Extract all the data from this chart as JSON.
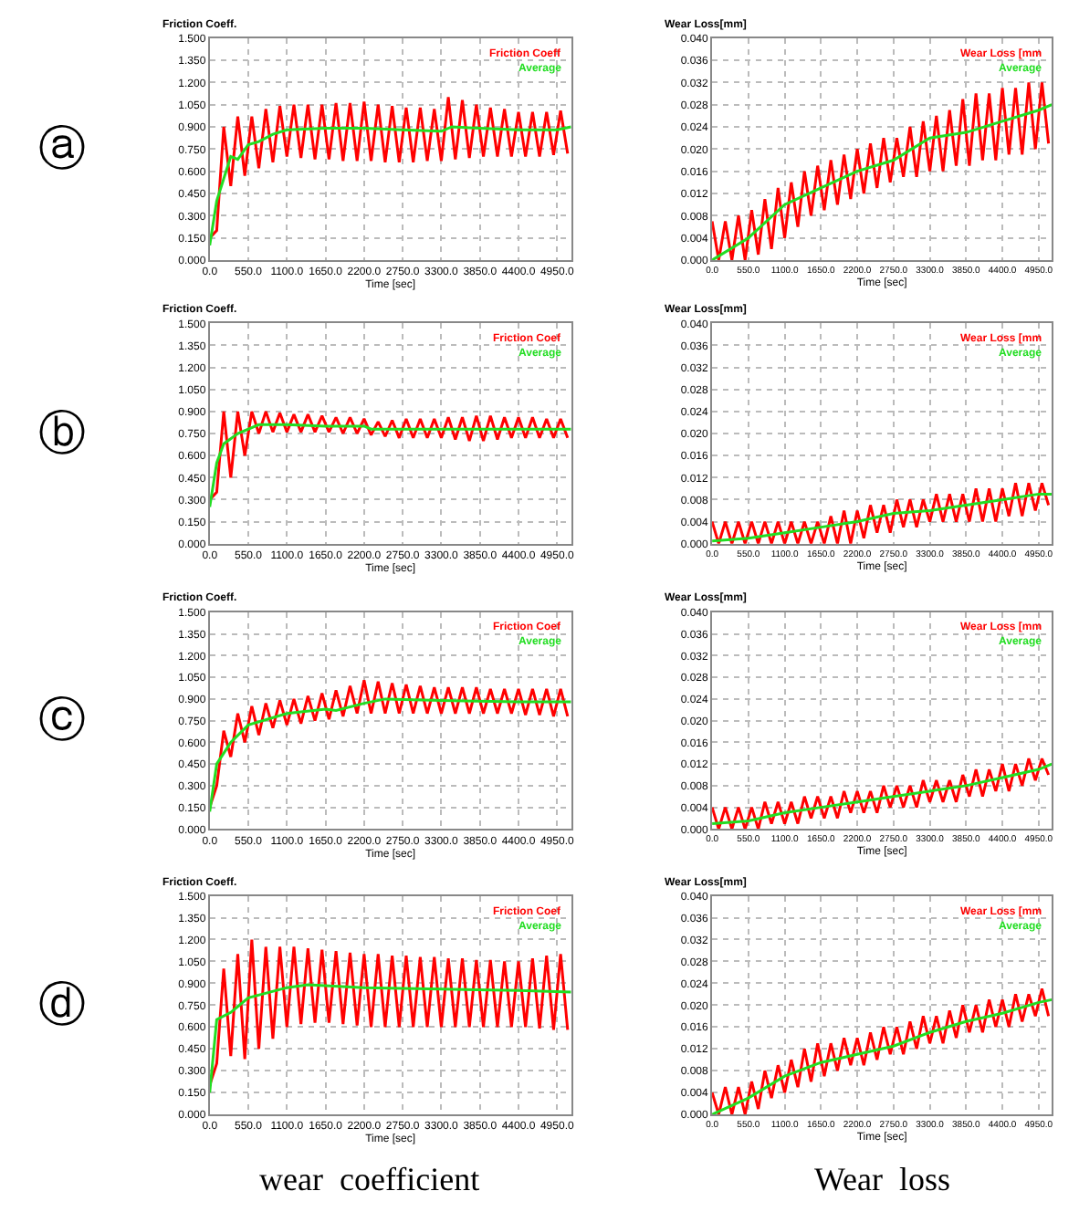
{
  "chart_data": [
    {
      "type": "line",
      "ylabel": "Friction Coeff.",
      "xlabel": "Time [sec]",
      "annotations": [
        "ⓐ"
      ],
      "legend": "top right",
      "grid": true,
      "line_style": "solid",
      "marker": "none",
      "xlim": [
        0,
        5150
      ],
      "xticks": [
        {
          "value": 0,
          "label": "0.0"
        },
        {
          "value": 550,
          "label": "550.0"
        },
        {
          "value": 1100,
          "label": "1100.0"
        },
        {
          "value": 1650,
          "label": "1650.0"
        },
        {
          "value": 2200,
          "label": "2200.0"
        },
        {
          "value": 2750,
          "label": "2750.0"
        },
        {
          "value": 3300,
          "label": "3300.0"
        },
        {
          "value": 3850,
          "label": "3850.0"
        },
        {
          "value": 4400,
          "label": "4400.0"
        },
        {
          "value": 4950,
          "label": "4950.0"
        }
      ],
      "ylim": [
        0,
        1.5
      ],
      "yticks": [
        {
          "value": 0,
          "label": "0.000"
        },
        {
          "value": 0.15,
          "label": "0.150"
        },
        {
          "value": 0.3,
          "label": "0.300"
        },
        {
          "value": 0.45,
          "label": "0.450"
        },
        {
          "value": 0.6,
          "label": "0.600"
        },
        {
          "value": 0.75,
          "label": "0.750"
        },
        {
          "value": 0.9,
          "label": "0.900"
        },
        {
          "value": 1.05,
          "label": "1.050"
        },
        {
          "value": 1.2,
          "label": "1.200"
        },
        {
          "value": 1.35,
          "label": "1.350"
        },
        {
          "value": 1.5,
          "label": "1.500"
        }
      ],
      "series": [
        {
          "name": "Friction Coeff",
          "color": "#ff0000",
          "x": [
            0,
            100,
            200,
            300,
            400,
            500,
            600,
            700,
            800,
            900,
            1000,
            1100,
            1200,
            1300,
            1400,
            1500,
            1600,
            1700,
            1800,
            1900,
            2000,
            2100,
            2200,
            2300,
            2400,
            2500,
            2600,
            2700,
            2800,
            2900,
            3000,
            3100,
            3200,
            3300,
            3400,
            3500,
            3600,
            3700,
            3800,
            3900,
            4000,
            4100,
            4200,
            4300,
            4400,
            4500,
            4600,
            4700,
            4800,
            4900,
            5000,
            5100
          ],
          "values": [
            0.15,
            0.2,
            0.9,
            0.5,
            0.97,
            0.57,
            0.97,
            0.62,
            1.02,
            0.66,
            1.04,
            0.7,
            1.05,
            0.69,
            1.05,
            0.68,
            1.05,
            0.68,
            1.06,
            0.67,
            1.06,
            0.67,
            1.07,
            0.67,
            1.05,
            0.66,
            1.04,
            0.66,
            1.03,
            0.66,
            1.03,
            0.67,
            1.02,
            0.67,
            1.1,
            0.68,
            1.08,
            0.69,
            1.05,
            0.7,
            1.03,
            0.7,
            1.02,
            0.7,
            1.0,
            0.7,
            1.0,
            0.7,
            1.0,
            0.71,
            1.01,
            0.72
          ]
        },
        {
          "name": "Average",
          "color": "#22dd22",
          "x": [
            0,
            100,
            200,
            300,
            400,
            550,
            700,
            900,
            1100,
            1650,
            2200,
            2750,
            3300,
            3450,
            3850,
            4400,
            4950,
            5150
          ],
          "values": [
            0.1,
            0.4,
            0.55,
            0.7,
            0.68,
            0.78,
            0.8,
            0.85,
            0.88,
            0.89,
            0.89,
            0.88,
            0.87,
            0.9,
            0.89,
            0.88,
            0.88,
            0.9
          ]
        }
      ]
    },
    {
      "type": "line",
      "ylabel": "Wear Loss[mm]",
      "xlabel": "Time [sec]",
      "legend": "top right",
      "grid": true,
      "line_style": "solid",
      "marker": "none",
      "xlim": [
        0,
        5150
      ],
      "xticks": [
        {
          "value": 0,
          "label": "0.0"
        },
        {
          "value": 550,
          "label": "550.0"
        },
        {
          "value": 1100,
          "label": "1100.0"
        },
        {
          "value": 1650,
          "label": "1650.0"
        },
        {
          "value": 2200,
          "label": "2200.0"
        },
        {
          "value": 2750,
          "label": "2750.0"
        },
        {
          "value": 3300,
          "label": "3300.0"
        },
        {
          "value": 3850,
          "label": "3850.0"
        },
        {
          "value": 4400,
          "label": "4400.0"
        },
        {
          "value": 4950,
          "label": "4950.0"
        }
      ],
      "ylim": [
        0,
        0.04
      ],
      "yticks": [
        {
          "value": 0,
          "label": "0.000"
        },
        {
          "value": 0.004,
          "label": "0.004"
        },
        {
          "value": 0.008,
          "label": "0.008"
        },
        {
          "value": 0.012,
          "label": "0.012"
        },
        {
          "value": 0.016,
          "label": "0.016"
        },
        {
          "value": 0.02,
          "label": "0.020"
        },
        {
          "value": 0.024,
          "label": "0.024"
        },
        {
          "value": 0.028,
          "label": "0.028"
        },
        {
          "value": 0.032,
          "label": "0.032"
        },
        {
          "value": 0.036,
          "label": "0.036"
        },
        {
          "value": 0.04,
          "label": "0.040"
        }
      ],
      "series": [
        {
          "name": "Wear Loss [mm",
          "color": "#ff0000",
          "x": [
            0,
            100,
            200,
            300,
            400,
            500,
            600,
            700,
            800,
            900,
            1000,
            1100,
            1200,
            1300,
            1400,
            1500,
            1600,
            1700,
            1800,
            1900,
            2000,
            2100,
            2200,
            2300,
            2400,
            2500,
            2600,
            2700,
            2800,
            2900,
            3000,
            3100,
            3200,
            3300,
            3400,
            3500,
            3600,
            3700,
            3800,
            3900,
            4000,
            4100,
            4200,
            4300,
            4400,
            4500,
            4600,
            4700,
            4800,
            4900,
            5000,
            5100
          ],
          "values": [
            0.007,
            0,
            0.007,
            0,
            0.008,
            0,
            0.009,
            0.001,
            0.011,
            0.002,
            0.013,
            0.004,
            0.014,
            0.006,
            0.016,
            0.008,
            0.017,
            0.009,
            0.018,
            0.01,
            0.019,
            0.011,
            0.02,
            0.012,
            0.021,
            0.013,
            0.022,
            0.014,
            0.022,
            0.015,
            0.024,
            0.015,
            0.025,
            0.016,
            0.026,
            0.016,
            0.027,
            0.017,
            0.029,
            0.017,
            0.03,
            0.018,
            0.03,
            0.018,
            0.031,
            0.019,
            0.031,
            0.019,
            0.032,
            0.02,
            0.032,
            0.021
          ]
        },
        {
          "name": "Average",
          "color": "#22dd22",
          "x": [
            0,
            550,
            1100,
            1650,
            2200,
            2750,
            3300,
            3850,
            4400,
            4950,
            5150
          ],
          "values": [
            0,
            0.004,
            0.01,
            0.013,
            0.016,
            0.018,
            0.022,
            0.023,
            0.025,
            0.027,
            0.028
          ]
        }
      ]
    },
    {
      "type": "line",
      "ylabel": "Friction Coeff.",
      "xlabel": "Time [sec]",
      "annotations": [
        "ⓑ"
      ],
      "legend": "top right",
      "grid": true,
      "line_style": "solid",
      "marker": "none",
      "xlim": [
        0,
        5150
      ],
      "xticks": [
        {
          "value": 0,
          "label": "0.0"
        },
        {
          "value": 550,
          "label": "550.0"
        },
        {
          "value": 1100,
          "label": "1100.0"
        },
        {
          "value": 1650,
          "label": "1650.0"
        },
        {
          "value": 2200,
          "label": "2200.0"
        },
        {
          "value": 2750,
          "label": "2750.0"
        },
        {
          "value": 3300,
          "label": "3300.0"
        },
        {
          "value": 3850,
          "label": "3850.0"
        },
        {
          "value": 4400,
          "label": "4400.0"
        },
        {
          "value": 4950,
          "label": "4950.0"
        }
      ],
      "ylim": [
        0,
        1.5
      ],
      "yticks": [
        {
          "value": 0,
          "label": "0.000"
        },
        {
          "value": 0.15,
          "label": "0.150"
        },
        {
          "value": 0.3,
          "label": "0.300"
        },
        {
          "value": 0.45,
          "label": "0.450"
        },
        {
          "value": 0.6,
          "label": "0.600"
        },
        {
          "value": 0.75,
          "label": "0.750"
        },
        {
          "value": 0.9,
          "label": "0.900"
        },
        {
          "value": 1.05,
          "label": "1.050"
        },
        {
          "value": 1.2,
          "label": "1.200"
        },
        {
          "value": 1.35,
          "label": "1.350"
        },
        {
          "value": 1.5,
          "label": "1.500"
        }
      ],
      "series": [
        {
          "name": "Friction Coef",
          "color": "#ff0000",
          "x": [
            0,
            100,
            200,
            300,
            400,
            500,
            600,
            700,
            800,
            900,
            1000,
            1100,
            1200,
            1300,
            1400,
            1500,
            1600,
            1700,
            1800,
            1900,
            2000,
            2100,
            2200,
            2300,
            2400,
            2500,
            2600,
            2700,
            2800,
            2900,
            3000,
            3100,
            3200,
            3300,
            3400,
            3500,
            3600,
            3700,
            3800,
            3900,
            4000,
            4100,
            4200,
            4300,
            4400,
            4500,
            4600,
            4700,
            4800,
            4900,
            5000,
            5100
          ],
          "values": [
            0.3,
            0.35,
            0.9,
            0.45,
            0.9,
            0.6,
            0.9,
            0.75,
            0.9,
            0.76,
            0.89,
            0.76,
            0.88,
            0.76,
            0.88,
            0.76,
            0.87,
            0.76,
            0.86,
            0.75,
            0.86,
            0.75,
            0.85,
            0.74,
            0.83,
            0.73,
            0.84,
            0.72,
            0.85,
            0.72,
            0.85,
            0.72,
            0.85,
            0.72,
            0.86,
            0.71,
            0.86,
            0.7,
            0.87,
            0.7,
            0.87,
            0.71,
            0.86,
            0.72,
            0.86,
            0.72,
            0.86,
            0.72,
            0.85,
            0.72,
            0.85,
            0.72
          ]
        },
        {
          "name": "Average",
          "color": "#22dd22",
          "x": [
            0,
            100,
            200,
            400,
            700,
            1100,
            1650,
            2200,
            2300,
            2750,
            3850,
            4950,
            5150
          ],
          "values": [
            0.25,
            0.55,
            0.68,
            0.75,
            0.81,
            0.81,
            0.8,
            0.8,
            0.78,
            0.78,
            0.78,
            0.78,
            0.78
          ]
        }
      ]
    },
    {
      "type": "line",
      "ylabel": "Wear Loss[mm]",
      "xlabel": "Time [sec]",
      "legend": "top right",
      "grid": true,
      "line_style": "solid",
      "marker": "none",
      "xlim": [
        0,
        5150
      ],
      "xticks": [
        {
          "value": 0,
          "label": "0.0"
        },
        {
          "value": 550,
          "label": "550.0"
        },
        {
          "value": 1100,
          "label": "1100.0"
        },
        {
          "value": 1650,
          "label": "1650.0"
        },
        {
          "value": 2200,
          "label": "2200.0"
        },
        {
          "value": 2750,
          "label": "2750.0"
        },
        {
          "value": 3300,
          "label": "3300.0"
        },
        {
          "value": 3850,
          "label": "3850.0"
        },
        {
          "value": 4400,
          "label": "4400.0"
        },
        {
          "value": 4950,
          "label": "4950.0"
        }
      ],
      "ylim": [
        0,
        0.04
      ],
      "yticks": [
        {
          "value": 0,
          "label": "0.000"
        },
        {
          "value": 0.004,
          "label": "0.004"
        },
        {
          "value": 0.008,
          "label": "0.008"
        },
        {
          "value": 0.012,
          "label": "0.012"
        },
        {
          "value": 0.016,
          "label": "0.016"
        },
        {
          "value": 0.02,
          "label": "0.020"
        },
        {
          "value": 0.024,
          "label": "0.024"
        },
        {
          "value": 0.028,
          "label": "0.028"
        },
        {
          "value": 0.032,
          "label": "0.032"
        },
        {
          "value": 0.036,
          "label": "0.036"
        },
        {
          "value": 0.04,
          "label": "0.040"
        }
      ],
      "series": [
        {
          "name": "Wear Loss [mm",
          "color": "#ff0000",
          "x": [
            0,
            100,
            200,
            300,
            400,
            500,
            600,
            700,
            800,
            900,
            1000,
            1100,
            1200,
            1300,
            1400,
            1500,
            1600,
            1700,
            1800,
            1900,
            2000,
            2100,
            2200,
            2300,
            2400,
            2500,
            2600,
            2700,
            2800,
            2900,
            3000,
            3100,
            3200,
            3300,
            3400,
            3500,
            3600,
            3700,
            3800,
            3900,
            4000,
            4100,
            4200,
            4300,
            4400,
            4500,
            4600,
            4700,
            4800,
            4900,
            5000,
            5100
          ],
          "values": [
            0.004,
            0,
            0.004,
            0,
            0.004,
            0,
            0.004,
            0,
            0.004,
            0,
            0.004,
            0,
            0.004,
            0,
            0.004,
            0,
            0.004,
            0,
            0.005,
            0,
            0.006,
            0,
            0.006,
            0.001,
            0.007,
            0.002,
            0.007,
            0.002,
            0.008,
            0.003,
            0.008,
            0.003,
            0.008,
            0.004,
            0.009,
            0.004,
            0.009,
            0.004,
            0.009,
            0.004,
            0.01,
            0.004,
            0.01,
            0.004,
            0.01,
            0.005,
            0.011,
            0.005,
            0.011,
            0.006,
            0.011,
            0.007
          ]
        },
        {
          "name": "Average",
          "color": "#22dd22",
          "x": [
            0,
            550,
            1100,
            1650,
            2200,
            2750,
            3300,
            3850,
            4400,
            4950,
            5150
          ],
          "values": [
            0.0005,
            0.001,
            0.002,
            0.003,
            0.004,
            0.0055,
            0.006,
            0.007,
            0.008,
            0.009,
            0.009
          ]
        }
      ]
    },
    {
      "type": "line",
      "ylabel": "Friction Coeff.",
      "xlabel": "Time [sec]",
      "annotations": [
        "ⓒ"
      ],
      "legend": "top right",
      "grid": true,
      "line_style": "solid",
      "marker": "none",
      "xlim": [
        0,
        5150
      ],
      "xticks": [
        {
          "value": 0,
          "label": "0.0"
        },
        {
          "value": 550,
          "label": "550.0"
        },
        {
          "value": 1100,
          "label": "1100.0"
        },
        {
          "value": 1650,
          "label": "1650.0"
        },
        {
          "value": 2200,
          "label": "2200.0"
        },
        {
          "value": 2750,
          "label": "2750.0"
        },
        {
          "value": 3300,
          "label": "3300.0"
        },
        {
          "value": 3850,
          "label": "3850.0"
        },
        {
          "value": 4400,
          "label": "4400.0"
        },
        {
          "value": 4950,
          "label": "4950.0"
        }
      ],
      "ylim": [
        0,
        1.5
      ],
      "yticks": [
        {
          "value": 0,
          "label": "0.000"
        },
        {
          "value": 0.15,
          "label": "0.150"
        },
        {
          "value": 0.3,
          "label": "0.300"
        },
        {
          "value": 0.45,
          "label": "0.450"
        },
        {
          "value": 0.6,
          "label": "0.600"
        },
        {
          "value": 0.75,
          "label": "0.750"
        },
        {
          "value": 0.9,
          "label": "0.900"
        },
        {
          "value": 1.05,
          "label": "1.050"
        },
        {
          "value": 1.2,
          "label": "1.200"
        },
        {
          "value": 1.35,
          "label": "1.350"
        },
        {
          "value": 1.5,
          "label": "1.500"
        }
      ],
      "series": [
        {
          "name": "Friction Coef",
          "color": "#ff0000",
          "x": [
            0,
            100,
            200,
            300,
            400,
            500,
            600,
            700,
            800,
            900,
            1000,
            1100,
            1200,
            1300,
            1400,
            1500,
            1600,
            1700,
            1800,
            1900,
            2000,
            2100,
            2200,
            2300,
            2400,
            2500,
            2600,
            2700,
            2800,
            2900,
            3000,
            3100,
            3200,
            3300,
            3400,
            3500,
            3600,
            3700,
            3800,
            3900,
            4000,
            4100,
            4200,
            4300,
            4400,
            4500,
            4600,
            4700,
            4800,
            4900,
            5000,
            5100
          ],
          "values": [
            0.15,
            0.3,
            0.68,
            0.5,
            0.8,
            0.6,
            0.85,
            0.65,
            0.87,
            0.7,
            0.89,
            0.72,
            0.9,
            0.73,
            0.92,
            0.75,
            0.94,
            0.76,
            0.96,
            0.78,
            0.99,
            0.8,
            1.03,
            0.8,
            1.02,
            0.8,
            1.01,
            0.8,
            1.0,
            0.8,
            0.99,
            0.8,
            0.98,
            0.8,
            0.98,
            0.8,
            0.98,
            0.8,
            0.98,
            0.8,
            0.97,
            0.8,
            0.97,
            0.8,
            0.97,
            0.79,
            0.97,
            0.79,
            0.97,
            0.78,
            0.97,
            0.78
          ]
        },
        {
          "name": "Average",
          "color": "#22dd22",
          "x": [
            0,
            100,
            300,
            550,
            1100,
            1650,
            1800,
            2200,
            2500,
            3300,
            4400,
            5150
          ],
          "values": [
            0.12,
            0.45,
            0.6,
            0.72,
            0.8,
            0.83,
            0.82,
            0.87,
            0.9,
            0.89,
            0.88,
            0.88
          ]
        }
      ]
    },
    {
      "type": "line",
      "ylabel": "Wear Loss[mm]",
      "xlabel": "Time [sec]",
      "legend": "top right",
      "grid": true,
      "line_style": "solid",
      "marker": "none",
      "xlim": [
        0,
        5150
      ],
      "xticks": [
        {
          "value": 0,
          "label": "0.0"
        },
        {
          "value": 550,
          "label": "550.0"
        },
        {
          "value": 1100,
          "label": "1100.0"
        },
        {
          "value": 1650,
          "label": "1650.0"
        },
        {
          "value": 2200,
          "label": "2200.0"
        },
        {
          "value": 2750,
          "label": "2750.0"
        },
        {
          "value": 3300,
          "label": "3300.0"
        },
        {
          "value": 3850,
          "label": "3850.0"
        },
        {
          "value": 4400,
          "label": "4400.0"
        },
        {
          "value": 4950,
          "label": "4950.0"
        }
      ],
      "ylim": [
        0,
        0.04
      ],
      "yticks": [
        {
          "value": 0,
          "label": "0.000"
        },
        {
          "value": 0.004,
          "label": "0.004"
        },
        {
          "value": 0.008,
          "label": "0.008"
        },
        {
          "value": 0.012,
          "label": "0.012"
        },
        {
          "value": 0.016,
          "label": "0.016"
        },
        {
          "value": 0.02,
          "label": "0.020"
        },
        {
          "value": 0.024,
          "label": "0.024"
        },
        {
          "value": 0.028,
          "label": "0.028"
        },
        {
          "value": 0.032,
          "label": "0.032"
        },
        {
          "value": 0.036,
          "label": "0.036"
        },
        {
          "value": 0.04,
          "label": "0.040"
        }
      ],
      "series": [
        {
          "name": "Wear Loss [mm",
          "color": "#ff0000",
          "x": [
            0,
            100,
            200,
            300,
            400,
            500,
            600,
            700,
            800,
            900,
            1000,
            1100,
            1200,
            1300,
            1400,
            1500,
            1600,
            1700,
            1800,
            1900,
            2000,
            2100,
            2200,
            2300,
            2400,
            2500,
            2600,
            2700,
            2800,
            2900,
            3000,
            3100,
            3200,
            3300,
            3400,
            3500,
            3600,
            3700,
            3800,
            3900,
            4000,
            4100,
            4200,
            4300,
            4400,
            4500,
            4600,
            4700,
            4800,
            4900,
            5000,
            5100
          ],
          "values": [
            0.004,
            0,
            0.004,
            0,
            0.004,
            0,
            0.004,
            0,
            0.005,
            0.001,
            0.005,
            0.001,
            0.005,
            0.001,
            0.006,
            0.002,
            0.006,
            0.002,
            0.006,
            0.002,
            0.007,
            0.003,
            0.007,
            0.003,
            0.007,
            0.003,
            0.008,
            0.004,
            0.008,
            0.004,
            0.008,
            0.004,
            0.009,
            0.005,
            0.009,
            0.005,
            0.009,
            0.005,
            0.01,
            0.006,
            0.011,
            0.006,
            0.011,
            0.007,
            0.012,
            0.007,
            0.012,
            0.008,
            0.013,
            0.009,
            0.013,
            0.01
          ]
        },
        {
          "name": "Average",
          "color": "#22dd22",
          "x": [
            0,
            550,
            1100,
            1650,
            2200,
            2750,
            3300,
            3850,
            4400,
            4950,
            5150
          ],
          "values": [
            0.001,
            0.0015,
            0.003,
            0.004,
            0.005,
            0.006,
            0.007,
            0.008,
            0.0095,
            0.011,
            0.012
          ]
        }
      ]
    },
    {
      "type": "line",
      "ylabel": "Friction Coeff.",
      "xlabel": "Time [sec]",
      "annotations": [
        "ⓓ",
        "wear  coefficient"
      ],
      "legend": "top right",
      "grid": true,
      "line_style": "solid",
      "marker": "none",
      "xlim": [
        0,
        5150
      ],
      "xticks": [
        {
          "value": 0,
          "label": "0.0"
        },
        {
          "value": 550,
          "label": "550.0"
        },
        {
          "value": 1100,
          "label": "1100.0"
        },
        {
          "value": 1650,
          "label": "1650.0"
        },
        {
          "value": 2200,
          "label": "2200.0"
        },
        {
          "value": 2750,
          "label": "2750.0"
        },
        {
          "value": 3300,
          "label": "3300.0"
        },
        {
          "value": 3850,
          "label": "3850.0"
        },
        {
          "value": 4400,
          "label": "4400.0"
        },
        {
          "value": 4950,
          "label": "4950.0"
        }
      ],
      "ylim": [
        0,
        1.5
      ],
      "yticks": [
        {
          "value": 0,
          "label": "0.000"
        },
        {
          "value": 0.15,
          "label": "0.150"
        },
        {
          "value": 0.3,
          "label": "0.300"
        },
        {
          "value": 0.45,
          "label": "0.450"
        },
        {
          "value": 0.6,
          "label": "0.600"
        },
        {
          "value": 0.75,
          "label": "0.750"
        },
        {
          "value": 0.9,
          "label": "0.900"
        },
        {
          "value": 1.05,
          "label": "1.050"
        },
        {
          "value": 1.2,
          "label": "1.200"
        },
        {
          "value": 1.35,
          "label": "1.350"
        },
        {
          "value": 1.5,
          "label": "1.500"
        }
      ],
      "series": [
        {
          "name": "Friction Coef",
          "color": "#ff0000",
          "x": [
            0,
            100,
            200,
            300,
            400,
            500,
            600,
            700,
            800,
            900,
            1000,
            1100,
            1200,
            1300,
            1400,
            1500,
            1600,
            1700,
            1800,
            1900,
            2000,
            2100,
            2200,
            2300,
            2400,
            2500,
            2600,
            2700,
            2800,
            2900,
            3000,
            3100,
            3200,
            3300,
            3400,
            3500,
            3600,
            3700,
            3800,
            3900,
            4000,
            4100,
            4200,
            4300,
            4400,
            4500,
            4600,
            4700,
            4800,
            4900,
            5000,
            5100
          ],
          "values": [
            0.2,
            0.35,
            1.0,
            0.4,
            1.1,
            0.38,
            1.2,
            0.45,
            1.15,
            0.52,
            1.15,
            0.6,
            1.15,
            0.62,
            1.14,
            0.63,
            1.13,
            0.63,
            1.12,
            0.62,
            1.11,
            0.61,
            1.1,
            0.6,
            1.1,
            0.6,
            1.09,
            0.6,
            1.09,
            0.6,
            1.08,
            0.6,
            1.08,
            0.6,
            1.07,
            0.6,
            1.07,
            0.6,
            1.06,
            0.6,
            1.06,
            0.6,
            1.05,
            0.6,
            1.05,
            0.6,
            1.07,
            0.59,
            1.09,
            0.58,
            1.1,
            0.58
          ]
        },
        {
          "name": "Average",
          "color": "#22dd22",
          "x": [
            0,
            100,
            300,
            550,
            1100,
            1400,
            2200,
            3300,
            4400,
            5150
          ],
          "values": [
            0.15,
            0.65,
            0.7,
            0.8,
            0.87,
            0.89,
            0.87,
            0.86,
            0.85,
            0.84
          ]
        }
      ]
    },
    {
      "type": "line",
      "ylabel": "Wear Loss[mm]",
      "xlabel": "Time [sec]",
      "annotations": [
        "Wear  loss"
      ],
      "legend": "top right",
      "grid": true,
      "line_style": "solid",
      "marker": "none",
      "xlim": [
        0,
        5150
      ],
      "xticks": [
        {
          "value": 0,
          "label": "0.0"
        },
        {
          "value": 550,
          "label": "550.0"
        },
        {
          "value": 1100,
          "label": "1100.0"
        },
        {
          "value": 1650,
          "label": "1650.0"
        },
        {
          "value": 2200,
          "label": "2200.0"
        },
        {
          "value": 2750,
          "label": "2750.0"
        },
        {
          "value": 3300,
          "label": "3300.0"
        },
        {
          "value": 3850,
          "label": "3850.0"
        },
        {
          "value": 4400,
          "label": "4400.0"
        },
        {
          "value": 4950,
          "label": "4950.0"
        }
      ],
      "ylim": [
        0,
        0.04
      ],
      "yticks": [
        {
          "value": 0,
          "label": "0.000"
        },
        {
          "value": 0.004,
          "label": "0.004"
        },
        {
          "value": 0.008,
          "label": "0.008"
        },
        {
          "value": 0.012,
          "label": "0.012"
        },
        {
          "value": 0.016,
          "label": "0.016"
        },
        {
          "value": 0.02,
          "label": "0.020"
        },
        {
          "value": 0.024,
          "label": "0.024"
        },
        {
          "value": 0.028,
          "label": "0.028"
        },
        {
          "value": 0.032,
          "label": "0.032"
        },
        {
          "value": 0.036,
          "label": "0.036"
        },
        {
          "value": 0.04,
          "label": "0.040"
        }
      ],
      "series": [
        {
          "name": "Wear Loss [mm",
          "color": "#ff0000",
          "x": [
            0,
            100,
            200,
            300,
            400,
            500,
            600,
            700,
            800,
            900,
            1000,
            1100,
            1200,
            1300,
            1400,
            1500,
            1600,
            1700,
            1800,
            1900,
            2000,
            2100,
            2200,
            2300,
            2400,
            2500,
            2600,
            2700,
            2800,
            2900,
            3000,
            3100,
            3200,
            3300,
            3400,
            3500,
            3600,
            3700,
            3800,
            3900,
            4000,
            4100,
            4200,
            4300,
            4400,
            4500,
            4600,
            4700,
            4800,
            4900,
            5000,
            5100
          ],
          "values": [
            0.004,
            0,
            0.005,
            0,
            0.005,
            0,
            0.006,
            0.001,
            0.008,
            0.003,
            0.009,
            0.004,
            0.01,
            0.005,
            0.012,
            0.006,
            0.013,
            0.007,
            0.013,
            0.008,
            0.014,
            0.009,
            0.014,
            0.009,
            0.015,
            0.01,
            0.016,
            0.011,
            0.016,
            0.011,
            0.017,
            0.012,
            0.018,
            0.013,
            0.018,
            0.013,
            0.019,
            0.014,
            0.02,
            0.015,
            0.02,
            0.015,
            0.021,
            0.016,
            0.021,
            0.016,
            0.022,
            0.017,
            0.022,
            0.018,
            0.023,
            0.018
          ]
        },
        {
          "name": "Average",
          "color": "#22dd22",
          "x": [
            0,
            550,
            1100,
            1650,
            2200,
            2750,
            3300,
            3850,
            4400,
            4950,
            5150
          ],
          "values": [
            0,
            0.003,
            0.007,
            0.0095,
            0.011,
            0.0125,
            0.015,
            0.017,
            0.0185,
            0.0205,
            0.021
          ]
        }
      ]
    }
  ]
}
